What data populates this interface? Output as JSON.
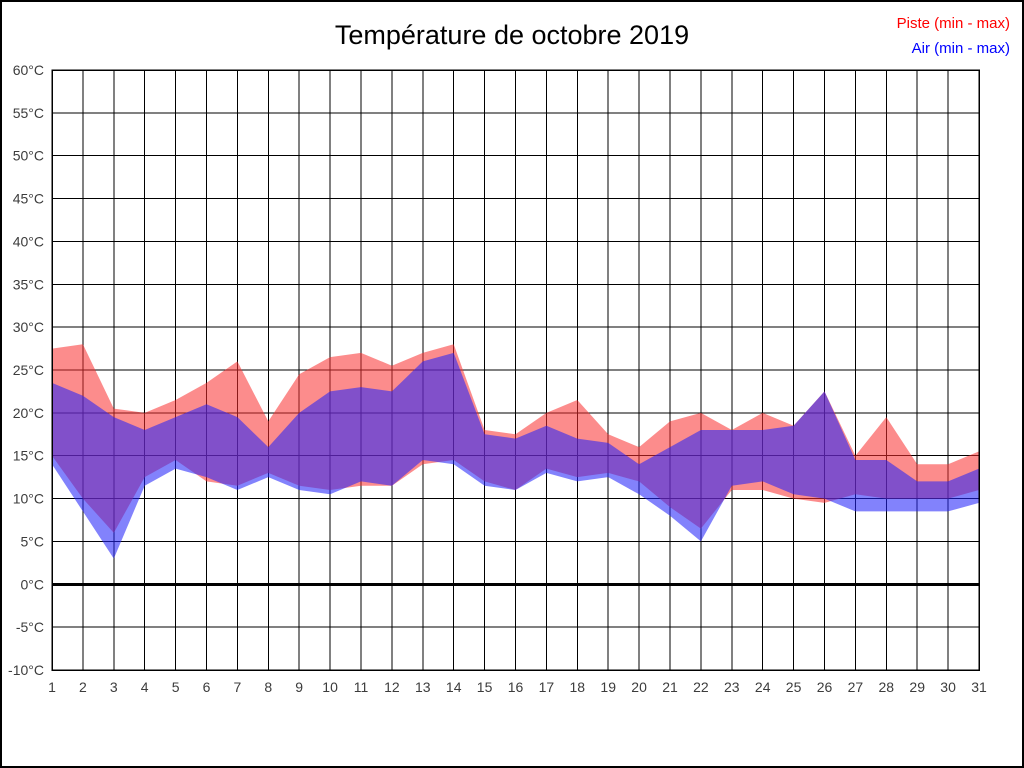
{
  "title": "Température de octobre 2019",
  "chart_data": {
    "type": "area",
    "title": "Température de octobre 2019",
    "x": [
      1,
      2,
      3,
      4,
      5,
      6,
      7,
      8,
      9,
      10,
      11,
      12,
      13,
      14,
      15,
      16,
      17,
      18,
      19,
      20,
      21,
      22,
      23,
      24,
      25,
      26,
      27,
      28,
      29,
      30,
      31
    ],
    "x_tick_labels": [
      "1",
      "2",
      "3",
      "4",
      "5",
      "6",
      "7",
      "8",
      "9",
      "10",
      "11",
      "12",
      "13",
      "14",
      "15",
      "16",
      "17",
      "18",
      "19",
      "20",
      "21",
      "22",
      "23",
      "24",
      "25",
      "26",
      "27",
      "28",
      "29",
      "30",
      "31"
    ],
    "y_tick_values": [
      60,
      55,
      50,
      45,
      40,
      35,
      30,
      25,
      20,
      15,
      10,
      5,
      0,
      -5,
      -10
    ],
    "y_tick_labels": [
      "60°C",
      "55°C",
      "50°C",
      "45°C",
      "40°C",
      "35°C",
      "30°C",
      "25°C",
      "20°C",
      "15°C",
      "10°C",
      "5°C",
      "0°C",
      "-5°C",
      "-10°C"
    ],
    "ylim": [
      -10,
      60
    ],
    "grid": true,
    "zero_line": true,
    "legend_position": "top-right",
    "series": [
      {
        "name": "Piste (min - max)",
        "legend_color": "#ff0000",
        "fill": "rgba(250,45,45,0.55)",
        "max": [
          27.5,
          28,
          20.5,
          20,
          21.5,
          23.5,
          26,
          19,
          24.5,
          26.5,
          27,
          25.5,
          27,
          28,
          18,
          17.5,
          20,
          21.5,
          17.5,
          16,
          19,
          20,
          18,
          20,
          18.5,
          22.5,
          15,
          19.5,
          14,
          14,
          15.5
        ],
        "min": [
          15,
          10,
          6,
          12.5,
          14.5,
          12,
          11.5,
          13,
          11.5,
          11,
          11.5,
          11.5,
          14,
          14.5,
          12,
          11,
          13.5,
          12.5,
          13,
          12,
          9,
          6.5,
          11,
          11,
          10,
          9.5,
          10.5,
          10,
          10,
          10,
          11
        ]
      },
      {
        "name": "Air (min - max)",
        "legend_color": "#0000ff",
        "fill": "rgba(35,35,250,0.57)",
        "max": [
          23.5,
          22,
          19.5,
          18,
          19.5,
          21,
          19.5,
          16,
          20,
          22.5,
          23,
          22.5,
          26,
          27,
          17.5,
          17,
          18.5,
          17,
          16.5,
          14,
          16,
          18,
          18,
          18,
          18.5,
          22.5,
          14.5,
          14.5,
          12,
          12,
          13.5
        ],
        "min": [
          14,
          8.5,
          3,
          11.5,
          13.5,
          12.5,
          11,
          12.5,
          11,
          10.5,
          12,
          11.5,
          14.5,
          14,
          11.5,
          11,
          13,
          12,
          12.5,
          10.5,
          8,
          5,
          11.5,
          12,
          10.5,
          10,
          8.5,
          8.5,
          8.5,
          8.5,
          9.5
        ]
      }
    ],
    "axis_text_color": "#3c3c3c"
  }
}
